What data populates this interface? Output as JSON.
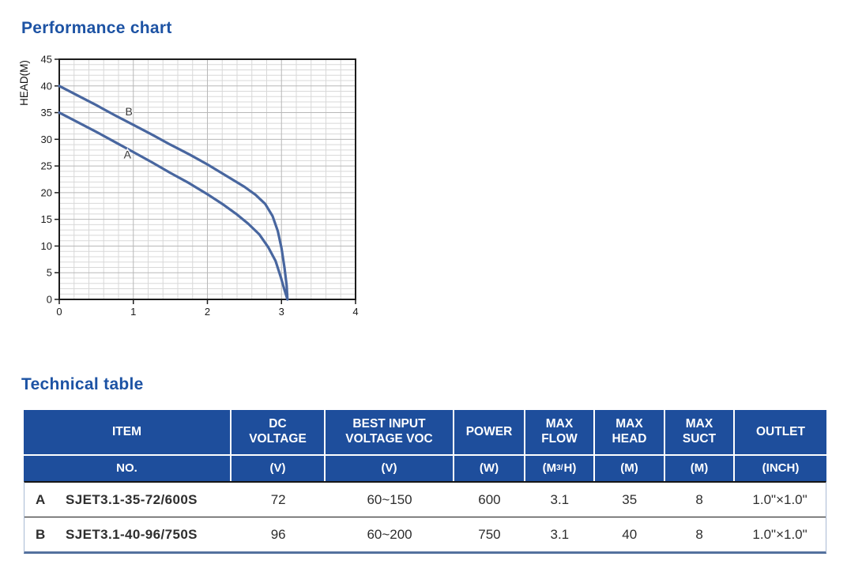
{
  "colors": {
    "accent_blue": "#1d53a4",
    "table_header_blue": "#1e4e9c",
    "curve_blue": "#48669f"
  },
  "performance": {
    "title": "Performance chart"
  },
  "chart_data": {
    "type": "line",
    "title": "",
    "xlabel": "",
    "ylabel": "HEAD(M)",
    "xlim": [
      0,
      4
    ],
    "ylim": [
      0,
      45
    ],
    "x_ticks": [
      0,
      1,
      2,
      3,
      4
    ],
    "y_ticks": [
      0,
      5,
      10,
      15,
      20,
      25,
      30,
      35,
      40,
      45
    ],
    "x_minor_step": 0.2,
    "y_minor_step": 1,
    "grid": true,
    "legend_position": "none",
    "series": [
      {
        "name": "B",
        "color": "#48669f",
        "label_pos": [
          0.94,
          34.5
        ],
        "points": [
          [
            0,
            40
          ],
          [
            0.25,
            38.2
          ],
          [
            0.5,
            36.4
          ],
          [
            0.75,
            34.5
          ],
          [
            1,
            32.7
          ],
          [
            1.25,
            30.9
          ],
          [
            1.5,
            29.0
          ],
          [
            1.75,
            27.2
          ],
          [
            2,
            25.3
          ],
          [
            2.25,
            23.2
          ],
          [
            2.5,
            21.1
          ],
          [
            2.65,
            19.6
          ],
          [
            2.78,
            17.9
          ],
          [
            2.88,
            15.6
          ],
          [
            2.95,
            12.8
          ],
          [
            3.0,
            9.6
          ],
          [
            3.04,
            6.0
          ],
          [
            3.07,
            2.6
          ],
          [
            3.08,
            0
          ]
        ]
      },
      {
        "name": "A",
        "color": "#48669f",
        "label_pos": [
          0.92,
          26.4
        ],
        "points": [
          [
            0,
            35
          ],
          [
            0.25,
            33.2
          ],
          [
            0.5,
            31.4
          ],
          [
            0.75,
            29.5
          ],
          [
            1,
            27.6
          ],
          [
            1.25,
            25.7
          ],
          [
            1.5,
            23.7
          ],
          [
            1.75,
            21.8
          ],
          [
            2,
            19.7
          ],
          [
            2.2,
            17.9
          ],
          [
            2.4,
            15.9
          ],
          [
            2.55,
            14.2
          ],
          [
            2.7,
            12.2
          ],
          [
            2.82,
            9.8
          ],
          [
            2.92,
            7.2
          ],
          [
            2.99,
            4.2
          ],
          [
            3.04,
            1.8
          ],
          [
            3.08,
            0
          ]
        ]
      }
    ]
  },
  "technical": {
    "title": "Technical table"
  },
  "table": {
    "columns": [
      {
        "label": "ITEM",
        "unit": "NO."
      },
      {
        "label": "DC\nVOLTAGE",
        "unit": "(V)"
      },
      {
        "label": "BEST INPUT\nVOLTAGE VOC",
        "unit": "(V)"
      },
      {
        "label": "POWER",
        "unit": "(W)"
      },
      {
        "label": "MAX\nFLOW",
        "unit_pre": "(M",
        "unit_sup": "3/",
        "unit_post": "H)"
      },
      {
        "label": "MAX\nHEAD",
        "unit": "(M)"
      },
      {
        "label": "MAX\nSUCT",
        "unit": "(M)"
      },
      {
        "label": "OUTLET",
        "unit": "(INCH)"
      }
    ],
    "rows": [
      {
        "no": "A",
        "item": "SJET3.1-35-72/600S",
        "dc_voltage": "72",
        "best_input": "60~150",
        "power": "600",
        "max_flow": "3.1",
        "max_head": "35",
        "max_suct": "8",
        "outlet": "1.0\"×1.0\""
      },
      {
        "no": "B",
        "item": "SJET3.1-40-96/750S",
        "dc_voltage": "96",
        "best_input": "60~200",
        "power": "750",
        "max_flow": "3.1",
        "max_head": "40",
        "max_suct": "8",
        "outlet": "1.0\"×1.0\""
      }
    ]
  }
}
